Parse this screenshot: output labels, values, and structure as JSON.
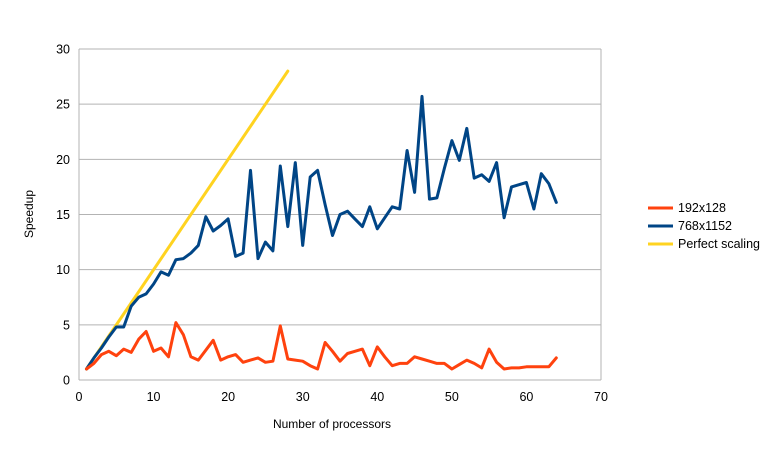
{
  "chart_data": {
    "type": "line",
    "title": "",
    "xlabel": "Number of processors",
    "ylabel": "Speedup",
    "xlim": [
      0,
      70
    ],
    "ylim": [
      0,
      30
    ],
    "xticks": [
      0,
      10,
      20,
      30,
      40,
      50,
      60,
      70
    ],
    "yticks": [
      0,
      5,
      10,
      15,
      20,
      25,
      30
    ],
    "grid": "horizontal",
    "legend_position": "right",
    "series": [
      {
        "name": "192x128",
        "color": "#ff420e",
        "x": [
          1,
          2,
          3,
          4,
          5,
          6,
          7,
          8,
          9,
          10,
          11,
          12,
          13,
          14,
          15,
          16,
          17,
          18,
          19,
          20,
          21,
          22,
          23,
          24,
          25,
          26,
          27,
          28,
          29,
          30,
          31,
          32,
          33,
          34,
          35,
          36,
          37,
          38,
          39,
          40,
          41,
          42,
          43,
          44,
          45,
          46,
          47,
          48,
          49,
          50,
          51,
          52,
          53,
          54,
          55,
          56,
          57,
          58,
          59,
          60,
          61,
          62,
          63,
          64
        ],
        "y": [
          1.0,
          1.5,
          2.3,
          2.6,
          2.2,
          2.8,
          2.5,
          3.7,
          4.4,
          2.6,
          2.9,
          2.1,
          5.2,
          4.1,
          2.1,
          1.8,
          2.7,
          3.6,
          1.8,
          2.1,
          2.3,
          1.6,
          1.8,
          2.0,
          1.6,
          1.7,
          4.9,
          1.9,
          1.8,
          1.7,
          1.3,
          1.0,
          3.4,
          2.6,
          1.7,
          2.4,
          2.6,
          2.8,
          1.3,
          3.0,
          2.1,
          1.3,
          1.5,
          1.5,
          2.1,
          1.9,
          1.7,
          1.5,
          1.5,
          1.0,
          1.4,
          1.8,
          1.5,
          1.1,
          2.8,
          1.6,
          1.0,
          1.1,
          1.1,
          1.2,
          1.2,
          1.2,
          1.2,
          2.0
        ]
      },
      {
        "name": "768x1152",
        "color": "#004586",
        "x": [
          1,
          2,
          3,
          4,
          5,
          6,
          7,
          8,
          9,
          10,
          11,
          12,
          13,
          14,
          15,
          16,
          17,
          18,
          19,
          20,
          21,
          22,
          23,
          24,
          25,
          26,
          27,
          28,
          29,
          30,
          31,
          32,
          33,
          34,
          35,
          36,
          37,
          38,
          39,
          40,
          41,
          42,
          43,
          44,
          45,
          46,
          47,
          48,
          49,
          50,
          51,
          52,
          53,
          54,
          55,
          56,
          57,
          58,
          59,
          60,
          61,
          62,
          63,
          64
        ],
        "y": [
          1.0,
          2.0,
          2.9,
          3.9,
          4.8,
          4.8,
          6.7,
          7.5,
          7.8,
          8.7,
          9.8,
          9.5,
          10.9,
          11.0,
          11.5,
          12.2,
          14.8,
          13.5,
          14.0,
          14.6,
          11.2,
          11.5,
          19.0,
          11.0,
          12.5,
          11.7,
          19.4,
          13.9,
          19.7,
          12.2,
          18.4,
          19.0,
          15.9,
          13.1,
          15.0,
          15.3,
          14.6,
          13.9,
          15.7,
          13.7,
          14.7,
          15.7,
          15.5,
          20.8,
          17.0,
          25.7,
          16.4,
          16.5,
          19.2,
          21.7,
          19.9,
          22.8,
          18.3,
          18.6,
          18.0,
          19.7,
          14.7,
          17.5,
          17.7,
          17.9,
          15.5,
          18.7,
          17.8,
          16.1
        ]
      },
      {
        "name": "Perfect scaling",
        "color": "#ffd320",
        "x": [
          1,
          28
        ],
        "y": [
          1,
          28
        ]
      }
    ]
  }
}
